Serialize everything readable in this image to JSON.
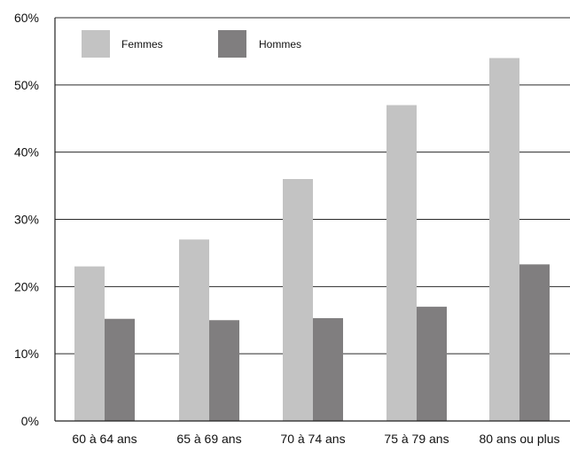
{
  "chart_data": {
    "type": "bar",
    "categories": [
      "60 à 64 ans",
      "65 à 69 ans",
      "70 à 74 ans",
      "75 à 79 ans",
      "80 ans ou plus"
    ],
    "series": [
      {
        "name": "Femmes",
        "values": [
          23,
          27,
          36,
          47,
          54
        ],
        "color": "#c3c3c3"
      },
      {
        "name": "Hommes",
        "values": [
          15.2,
          15,
          15.3,
          17,
          23.3
        ],
        "color": "#807e7f"
      }
    ],
    "title": "",
    "xlabel": "",
    "ylabel": "",
    "ylim": [
      0,
      60
    ],
    "yticks": [
      "0%",
      "10%",
      "20%",
      "30%",
      "40%",
      "50%",
      "60%"
    ],
    "grid": true,
    "legend_position": "top-left"
  }
}
